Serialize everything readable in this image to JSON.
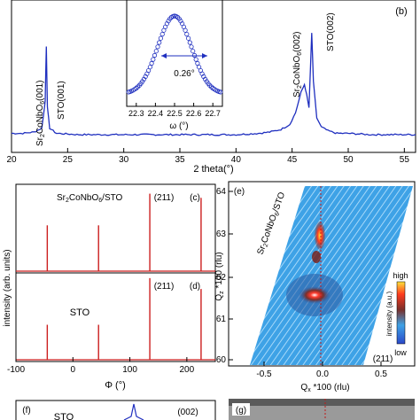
{
  "chart_data": [
    {
      "panel": "b",
      "type": "line",
      "xlabel": "2 theta(°)",
      "x_ticks": [
        "20",
        "25",
        "30",
        "35",
        "40",
        "45",
        "50",
        "55"
      ],
      "xlim": [
        20,
        56
      ],
      "series": [
        {
          "x": [
            20,
            21,
            22,
            22.7,
            23.0,
            23.1,
            23.2,
            23.4,
            24,
            26,
            28,
            30,
            32,
            34,
            36,
            38,
            40,
            42,
            43,
            44,
            44.8,
            45.3,
            45.8,
            46.1,
            46.3,
            46.5,
            46.75,
            46.9,
            47.2,
            47.6,
            48.2,
            49,
            50,
            52,
            54,
            56
          ],
          "y": [
            0.1,
            0.1,
            0.11,
            0.14,
            0.35,
            0.78,
            0.3,
            0.14,
            0.1,
            0.09,
            0.09,
            0.09,
            0.09,
            0.09,
            0.09,
            0.09,
            0.09,
            0.1,
            0.11,
            0.13,
            0.17,
            0.26,
            0.42,
            0.48,
            0.4,
            0.3,
            0.88,
            0.5,
            0.22,
            0.15,
            0.12,
            0.1,
            0.1,
            0.09,
            0.09,
            0.09
          ],
          "color": "#1f2fbf"
        }
      ],
      "annotations": [
        "Sr2CoNbO6(001)",
        "STO(001)",
        "Sr2CoNbO6(002)",
        "STO(002)",
        "(b)"
      ],
      "inset": {
        "xlabel": "ω (°)",
        "x_ticks": [
          "22.3",
          "22.4",
          "22.5",
          "22.6",
          "22.7"
        ],
        "xlim": [
          22.25,
          22.75
        ],
        "fwhm_label": "0.26°",
        "peak_center": 22.5
      }
    },
    {
      "panel": "c",
      "type": "line",
      "label": "Sr2CoNbO6/STO",
      "hkl": "(211)",
      "peaks_phi": [
        -45,
        45,
        135,
        225
      ],
      "peak_heights": [
        0.55,
        0.55,
        0.93,
        0.88
      ],
      "color": "#cc1f1f"
    },
    {
      "panel": "d",
      "type": "line",
      "label": "STO",
      "hkl": "(211)",
      "peaks_phi": [
        -45,
        45,
        135,
        225
      ],
      "peak_heights": [
        0.42,
        0.42,
        0.98,
        0.85
      ],
      "xlabel": "Φ (°)",
      "x_ticks": [
        "-100",
        "0",
        "100",
        "200"
      ],
      "xlim": [
        -100,
        250
      ],
      "color": "#cc1f1f"
    },
    {
      "panel": "e",
      "type": "heatmap",
      "label": "Sr2CoNbO6/STO",
      "hkl": "(211)",
      "xlabel": "Qx *100 (rlu)",
      "ylabel": "Qz *100 (rlu)",
      "x_ticks": [
        "-0.5",
        "0.0",
        "0.5"
      ],
      "y_ticks": [
        "60",
        "61",
        "62",
        "63",
        "64"
      ],
      "colorbar": {
        "title": "intensity (a.u.)",
        "high": "high",
        "low": "low"
      }
    }
  ],
  "shared": {
    "ylabel": "intensity (arb. units)"
  },
  "bottom": {
    "panel_f": "(f)",
    "panel_f_label": "STO",
    "panel_f_hkl": "(002)",
    "panel_g": "(g)"
  }
}
